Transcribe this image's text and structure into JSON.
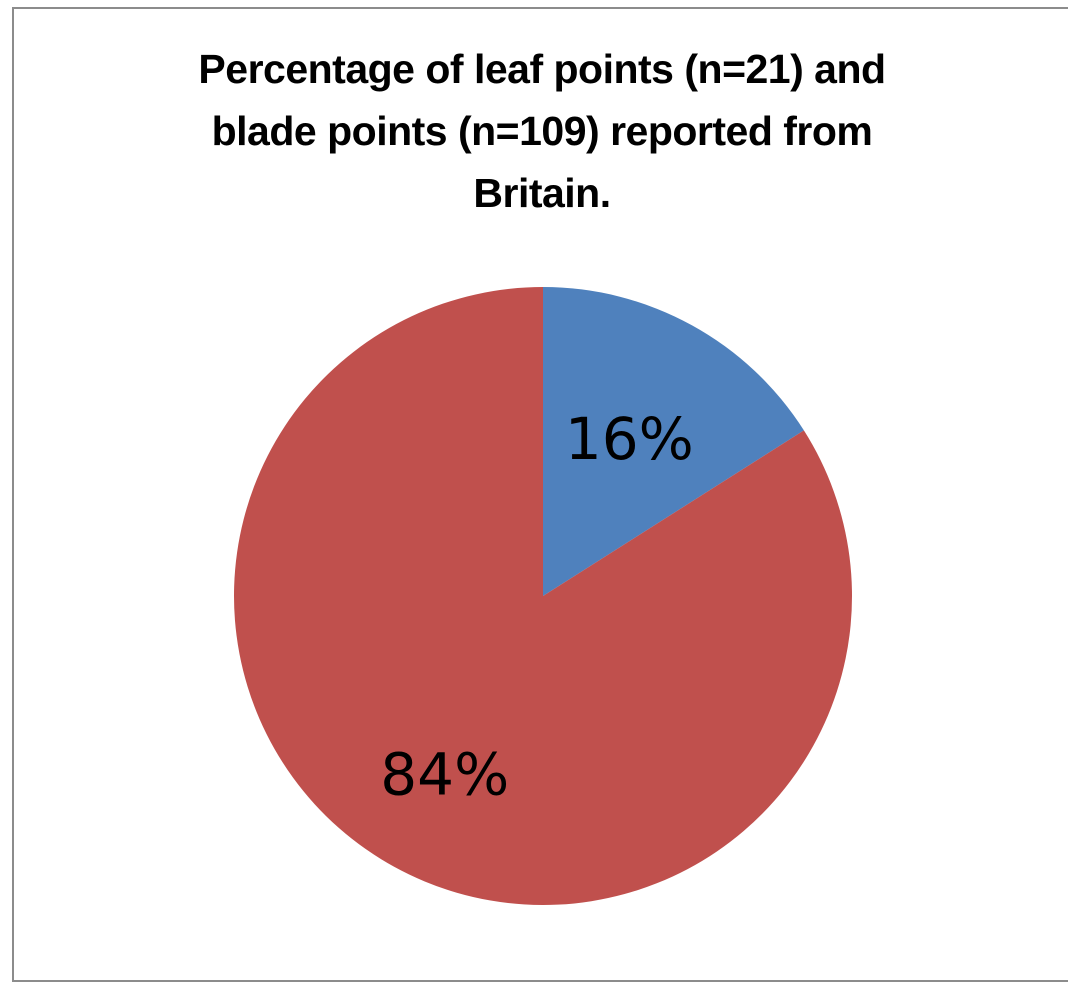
{
  "chart_data": {
    "type": "pie",
    "title_lines": [
      "Percentage of leaf points (n=21) and",
      "blade points (n=109) reported from",
      "Britain."
    ],
    "slices": [
      {
        "label": "16%",
        "value": 16,
        "color": "#4f81bd"
      },
      {
        "label": "84%",
        "value": 84,
        "color": "#c0504d"
      }
    ],
    "start_angle_deg": 0,
    "direction": "clockwise"
  }
}
